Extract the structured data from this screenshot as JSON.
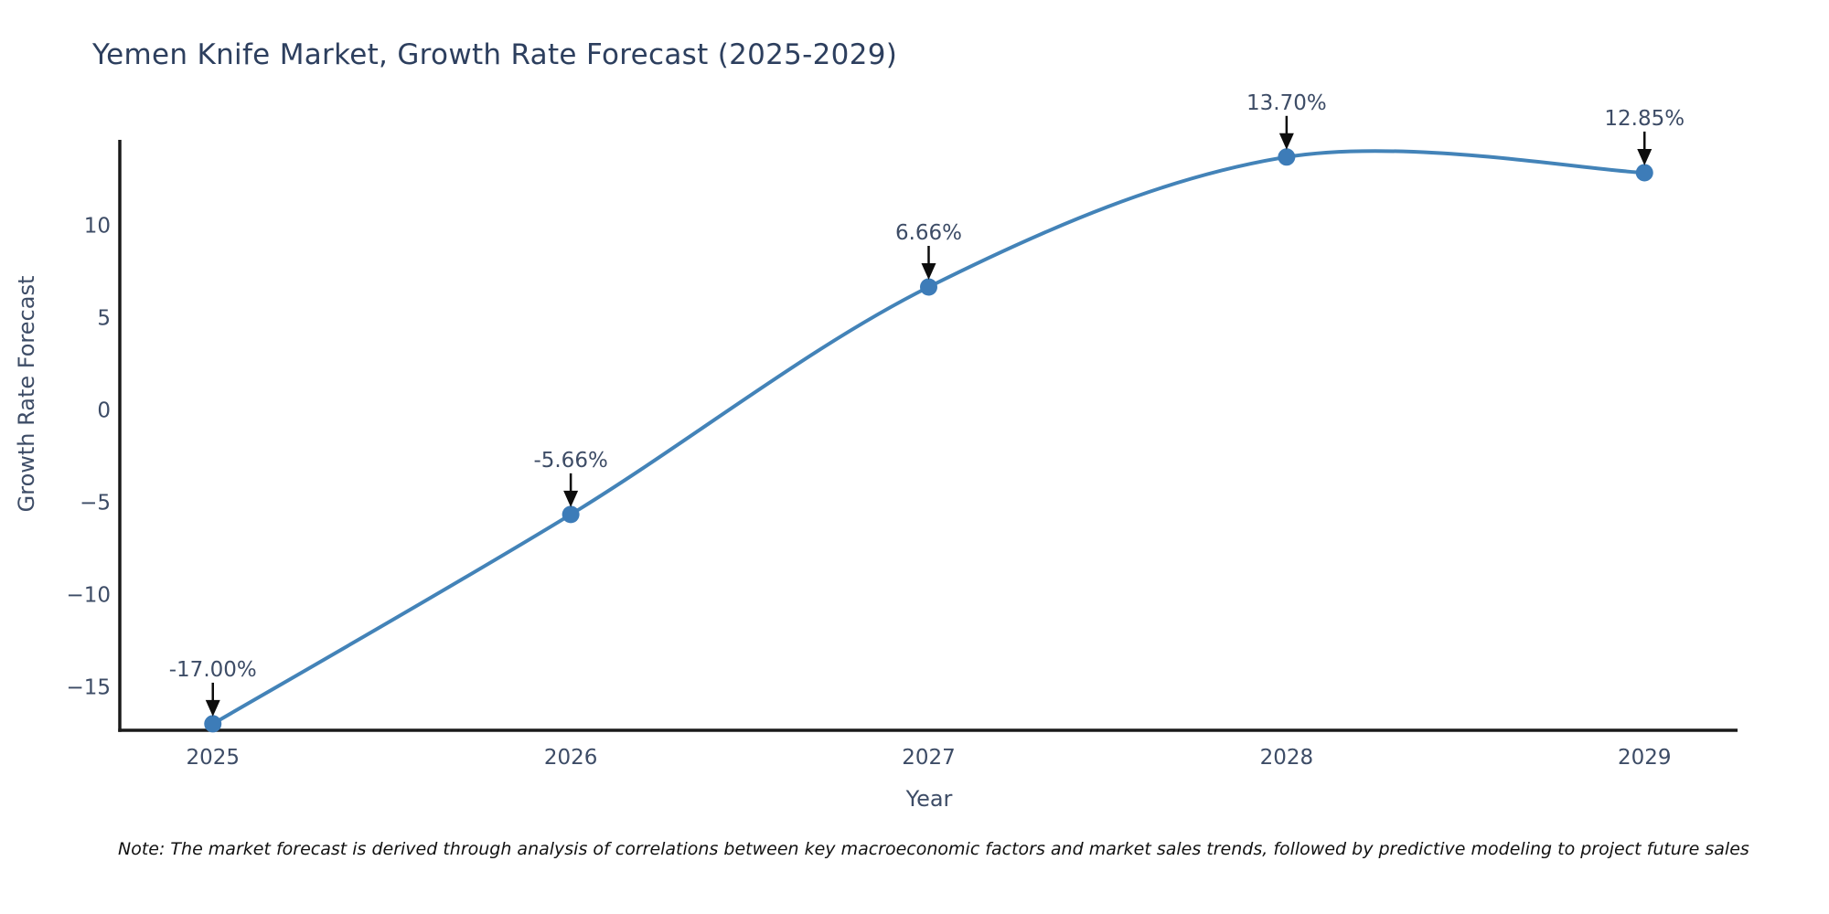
{
  "note": {
    "text": "Note: The market forecast is derived through analysis of correlations between key macroeconomic factors and market sales trends, followed by predictive modeling to project future sales"
  },
  "chart_data": {
    "type": "line",
    "title": "Yemen Knife Market, Growth Rate Forecast (2025-2029)",
    "xlabel": "Year",
    "ylabel": "Growth Rate Forecast",
    "x": [
      2025,
      2026,
      2027,
      2028,
      2029
    ],
    "series": [
      {
        "name": "Growth Rate Forecast",
        "values": [
          -17.0,
          -5.66,
          6.66,
          13.7,
          12.85
        ]
      }
    ],
    "point_labels": [
      "-17.00%",
      "-5.66%",
      "6.66%",
      "13.70%",
      "12.85%"
    ],
    "xticks": [
      2025,
      2026,
      2027,
      2028,
      2029
    ],
    "yticks": [
      10,
      5,
      0,
      -5,
      -10,
      -15
    ],
    "xlim": [
      2024.74,
      2029.26
    ],
    "ylim": [
      -17.35,
      14.63
    ],
    "grid": false,
    "legend": "none",
    "line_shape": "spline",
    "annotations_have_arrows": true,
    "colors": {
      "line": "#4383b8",
      "marker": "#3d7cb8",
      "arrow": "#0d0d0d",
      "axis": "#1a1a1a",
      "title_text": "#2d3f5e",
      "axis_text": "#3d4c66"
    }
  }
}
